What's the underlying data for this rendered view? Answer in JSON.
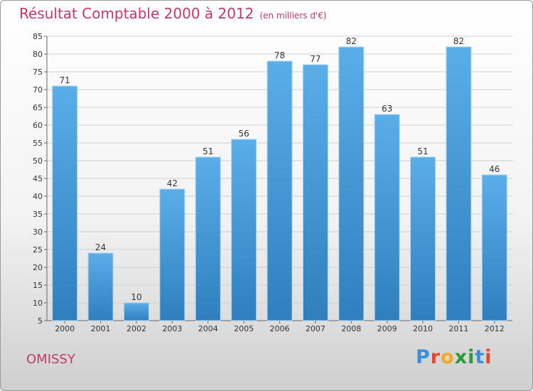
{
  "chart_data": {
    "type": "bar",
    "title": "Résultat Comptable 2000 à 2012",
    "subtitle": "(en milliers d'€)",
    "categories": [
      "2000",
      "2001",
      "2002",
      "2003",
      "2004",
      "2005",
      "2006",
      "2007",
      "2008",
      "2009",
      "2010",
      "2011",
      "2012"
    ],
    "values": [
      71,
      24,
      10,
      42,
      51,
      56,
      78,
      77,
      82,
      63,
      51,
      82,
      46
    ],
    "ylim": [
      5,
      85
    ],
    "yticks": [
      5,
      10,
      15,
      20,
      25,
      30,
      35,
      40,
      45,
      50,
      55,
      60,
      65,
      70,
      75,
      80,
      85
    ],
    "grid": true,
    "bar_color": "#3f97d6",
    "xlabel": "",
    "ylabel": ""
  },
  "commune": "OMISSY",
  "brand": {
    "text": "Proxiti",
    "letter_colors": [
      "#3b8fd6",
      "#e8452a",
      "#f5a623",
      "#2a9a3a",
      "#2a9a3a",
      "#3b8fd6",
      "#e8452a"
    ]
  },
  "colors": {
    "accent": "#c0396a",
    "grid": "#cfcfcf",
    "axis": "#666666"
  }
}
